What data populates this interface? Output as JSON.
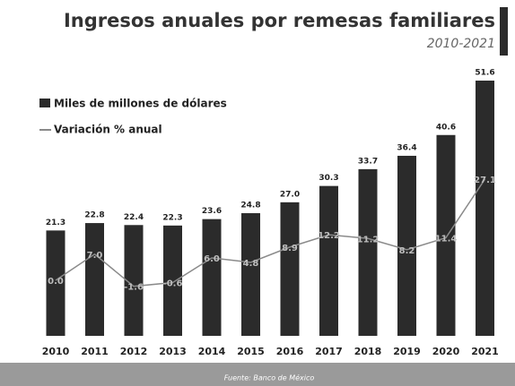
{
  "chart_data": {
    "type": "bar",
    "title": "Ingresos anuales por remesas familiares",
    "subtitle": "2010-2021",
    "source": "Fuente: Banco de México",
    "categories": [
      "2010",
      "2011",
      "2012",
      "2013",
      "2014",
      "2015",
      "2016",
      "2017",
      "2018",
      "2019",
      "2020",
      "2021"
    ],
    "series": [
      {
        "name": "Miles de millones de dólares",
        "type": "bar",
        "color": "#2b2b2b",
        "values": [
          21.3,
          22.8,
          22.4,
          22.3,
          23.6,
          24.8,
          27.0,
          30.3,
          33.7,
          36.4,
          40.6,
          51.6
        ],
        "value_labels": [
          "21.3",
          "22.8",
          "22.4",
          "22.3",
          "23.6",
          "24.8",
          "27.0",
          "30.3",
          "33.7",
          "36.4",
          "40.6",
          "51.6"
        ]
      },
      {
        "name": "Variación % anual",
        "type": "line",
        "color": "#8a8a8a",
        "values": [
          0.0,
          7.0,
          -1.6,
          -0.6,
          6.0,
          4.8,
          8.9,
          12.2,
          11.2,
          8.2,
          11.4,
          27.1
        ],
        "value_labels": [
          "0.0",
          "7.0",
          "-1.6",
          "-0.6",
          "6.0",
          "4.8",
          "8.9",
          "12.2",
          "11.2",
          "8.2",
          "11.4",
          "27.1"
        ]
      }
    ]
  }
}
